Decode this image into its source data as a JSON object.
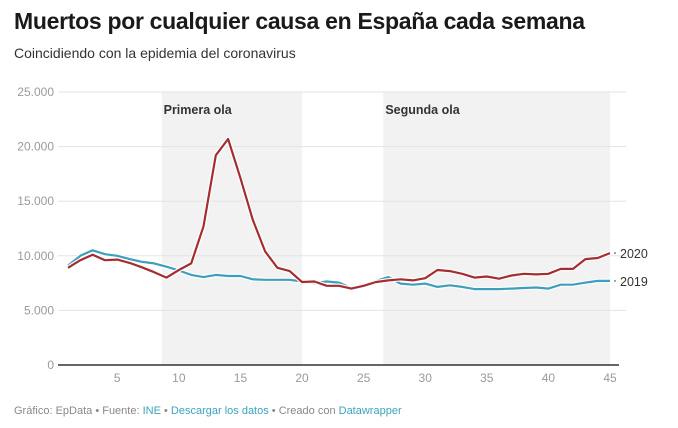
{
  "header": {
    "title": "Muertos por cualquier causa en España cada semana",
    "subtitle": "Coincidiendo con la epidemia del coronavirus"
  },
  "footer": {
    "grafico_prefix": "Gráfico: EpData • Fuente: ",
    "source_link": "INE",
    "sep1": " • ",
    "download_link": "Descargar los datos",
    "created_prefix": " • Creado con ",
    "tool_link": "Datawrapper"
  },
  "chart_data": {
    "type": "line",
    "title": "Muertos por cualquier causa en España cada semana",
    "subtitle": "Coincidiendo con la epidemia del coronavirus",
    "xlabel": "",
    "ylabel": "",
    "xlim": [
      1,
      45
    ],
    "ylim": [
      0,
      25000
    ],
    "grid": true,
    "x_ticks": [
      5,
      10,
      15,
      20,
      25,
      30,
      35,
      40,
      45
    ],
    "x_tick_labels": [
      "5",
      "10",
      "15",
      "20",
      "25",
      "30",
      "35",
      "40",
      "45"
    ],
    "y_ticks": [
      0,
      5000,
      10000,
      15000,
      20000,
      25000
    ],
    "y_tick_labels": [
      "0",
      "5.000",
      "10.000",
      "15.000",
      "20.000",
      "25.000"
    ],
    "legend": "inline-right",
    "bands": [
      {
        "label": "Primera ola",
        "from": 8.6,
        "to": 20
      },
      {
        "label": "Segunda ola",
        "from": 26.6,
        "to": 45
      }
    ],
    "x": [
      1,
      2,
      3,
      4,
      5,
      6,
      7,
      8,
      9,
      10,
      11,
      12,
      13,
      14,
      15,
      16,
      17,
      18,
      19,
      20,
      21,
      22,
      23,
      24,
      25,
      26,
      27,
      28,
      29,
      30,
      31,
      32,
      33,
      34,
      35,
      36,
      37,
      38,
      39,
      40,
      41,
      42,
      43,
      44,
      45
    ],
    "series": [
      {
        "name": "2020",
        "color": "#a42d2f",
        "values": [
          8900,
          9600,
          10100,
          9600,
          9650,
          9350,
          8950,
          8500,
          8000,
          8700,
          9300,
          12700,
          19200,
          20700,
          17100,
          13300,
          10400,
          8900,
          8600,
          7600,
          7650,
          7250,
          7250,
          7000,
          7250,
          7600,
          7750,
          7850,
          7750,
          7950,
          8700,
          8600,
          8350,
          8000,
          8100,
          7900,
          8200,
          8350,
          8300,
          8350,
          8800,
          8800,
          9700,
          9800,
          10250
        ]
      },
      {
        "name": "2019",
        "color": "#3e9ebd",
        "values": [
          9100,
          10000,
          10500,
          10150,
          10000,
          9700,
          9450,
          9300,
          9000,
          8650,
          8250,
          8050,
          8250,
          8150,
          8150,
          7850,
          7800,
          7800,
          7800,
          7650,
          7500,
          7650,
          7550,
          7050,
          7350,
          7700,
          8050,
          7450,
          7350,
          7450,
          7150,
          7300,
          7150,
          6950,
          6950,
          6950,
          7000,
          7050,
          7100,
          7000,
          7350,
          7350,
          7550,
          7700,
          7700
        ]
      }
    ]
  }
}
